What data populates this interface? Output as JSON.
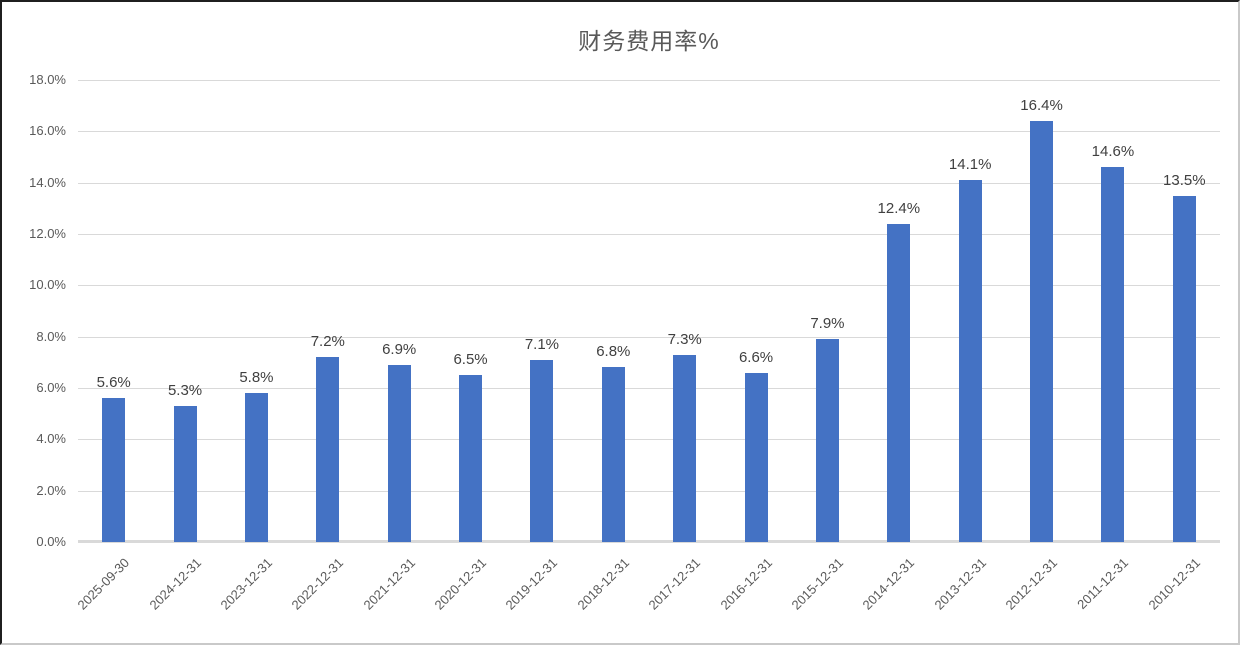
{
  "chart_data": {
    "type": "bar",
    "title": "财务费用率%",
    "xlabel": "",
    "ylabel": "",
    "categories": [
      "2025-09-30",
      "2024-12-31",
      "2023-12-31",
      "2022-12-31",
      "2021-12-31",
      "2020-12-31",
      "2019-12-31",
      "2018-12-31",
      "2017-12-31",
      "2016-12-31",
      "2015-12-31",
      "2014-12-31",
      "2013-12-31",
      "2012-12-31",
      "2011-12-31",
      "2010-12-31"
    ],
    "values": [
      5.6,
      5.3,
      5.8,
      7.2,
      6.9,
      6.5,
      7.1,
      6.8,
      7.3,
      6.6,
      7.9,
      12.4,
      14.1,
      16.4,
      14.6,
      13.5
    ],
    "data_labels": [
      "5.6%",
      "5.3%",
      "5.8%",
      "7.2%",
      "6.9%",
      "6.5%",
      "7.1%",
      "6.8%",
      "7.3%",
      "6.6%",
      "7.9%",
      "12.4%",
      "14.1%",
      "16.4%",
      "14.6%",
      "13.5%"
    ],
    "y_ticks": [
      "0.0%",
      "2.0%",
      "4.0%",
      "6.0%",
      "8.0%",
      "10.0%",
      "12.0%",
      "14.0%",
      "16.0%",
      "18.0%"
    ],
    "ylim": [
      0,
      18
    ],
    "y_tick_step": 2,
    "grid": true,
    "legend": "none",
    "colors": {
      "bar": "#4472C4",
      "gridline": "#d9d9d9",
      "axis_line": "#d9d9d9",
      "title": "#595959",
      "axis_labels": "#595959",
      "data_labels": "#404040"
    }
  }
}
